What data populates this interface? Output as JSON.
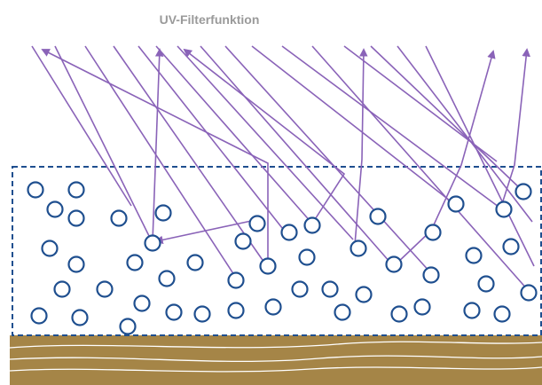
{
  "title": "UV-Filterfunktion",
  "colors": {
    "ray": "#8a63b8",
    "particle_stroke": "#1f4f8f",
    "box_border": "#1f4f8f",
    "substrate": "#a58547",
    "substrate_lines": "#ffffff",
    "title": "#9a9a9a"
  },
  "icons": {
    "particle": "circle-particle-icon",
    "arrow": "arrowhead-icon"
  }
}
